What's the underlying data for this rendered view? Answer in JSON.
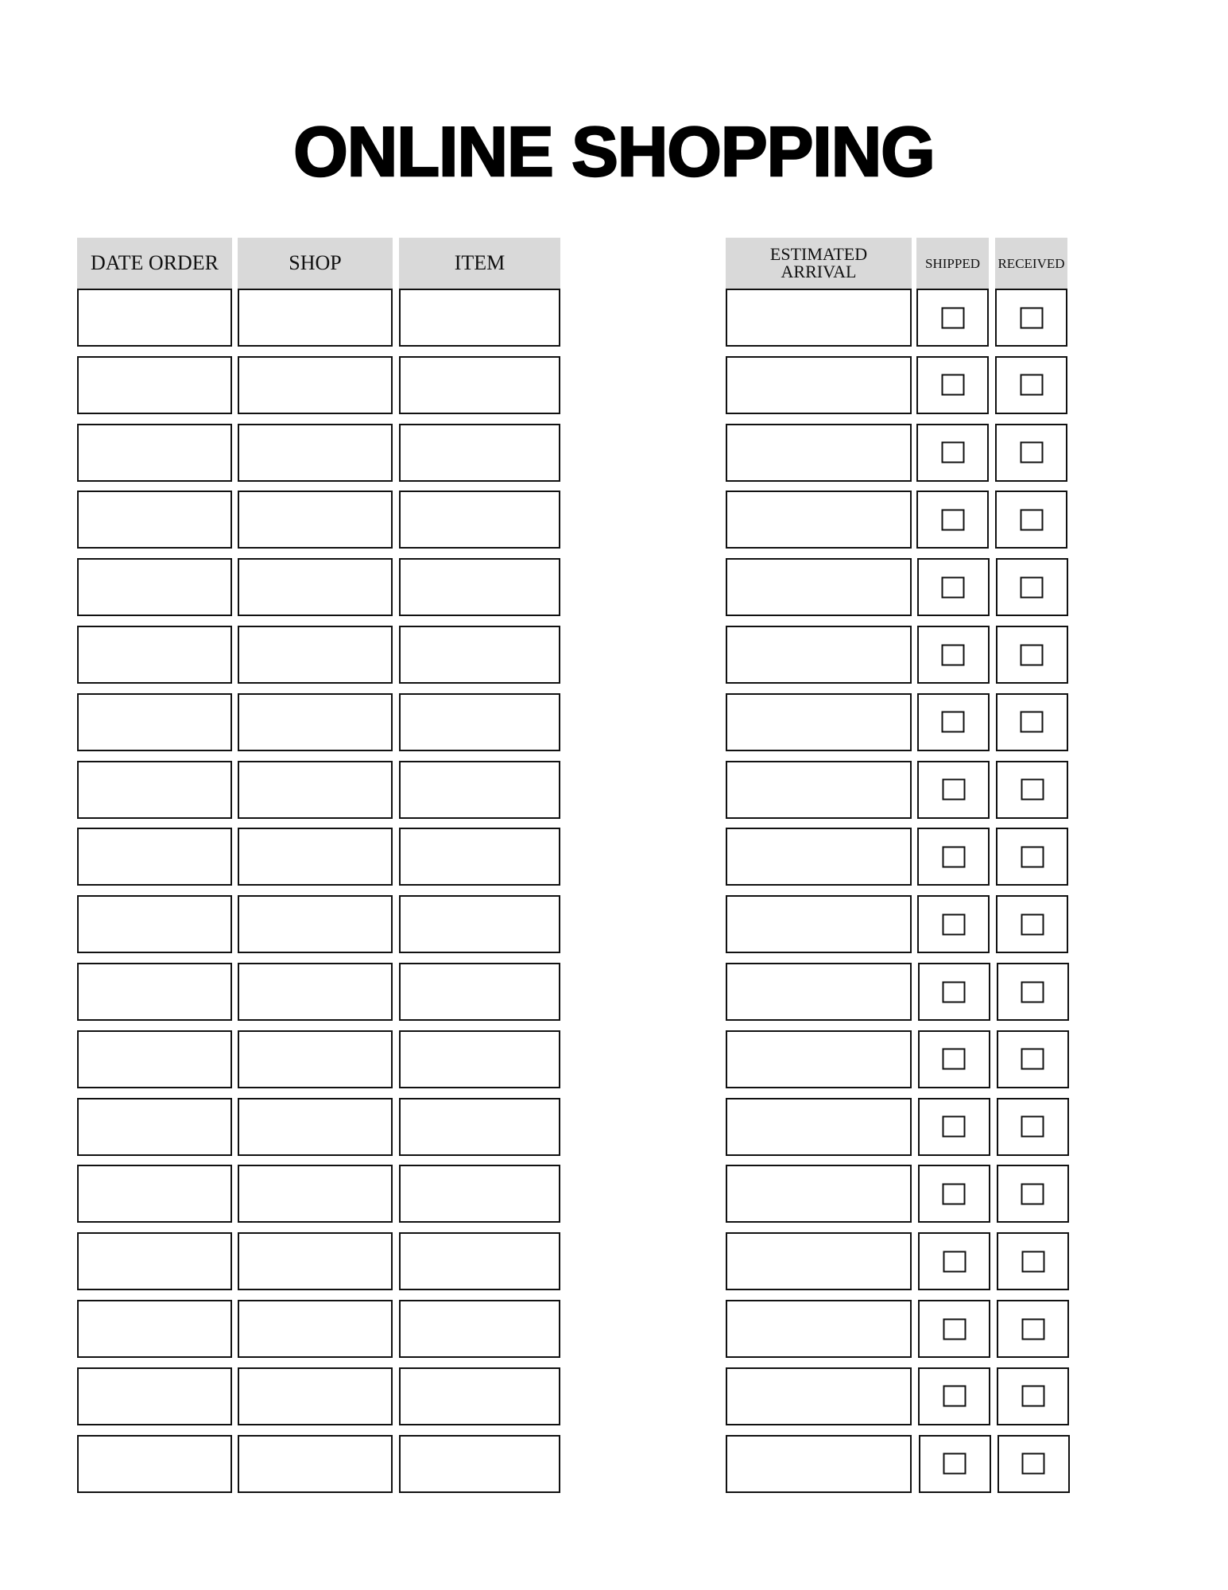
{
  "title": "ONLINE SHOPPING",
  "columns": [
    {
      "label": "DATE ORDER",
      "type": "text"
    },
    {
      "label": "SHOP",
      "type": "text"
    },
    {
      "label": "ITEM",
      "type": "text"
    },
    {
      "label": "ESTIMATED ARRIVAL",
      "type": "text"
    },
    {
      "label": "SHIPPED",
      "type": "checkbox"
    },
    {
      "label": "RECEIVED",
      "type": "checkbox"
    }
  ],
  "rows": [
    {
      "date_order": "",
      "shop": "",
      "item": "",
      "estimated_arrival": "",
      "shipped": false,
      "received": false
    },
    {
      "date_order": "",
      "shop": "",
      "item": "",
      "estimated_arrival": "",
      "shipped": false,
      "received": false
    },
    {
      "date_order": "",
      "shop": "",
      "item": "",
      "estimated_arrival": "",
      "shipped": false,
      "received": false
    },
    {
      "date_order": "",
      "shop": "",
      "item": "",
      "estimated_arrival": "",
      "shipped": false,
      "received": false
    },
    {
      "date_order": "",
      "shop": "",
      "item": "",
      "estimated_arrival": "",
      "shipped": false,
      "received": false
    },
    {
      "date_order": "",
      "shop": "",
      "item": "",
      "estimated_arrival": "",
      "shipped": false,
      "received": false
    },
    {
      "date_order": "",
      "shop": "",
      "item": "",
      "estimated_arrival": "",
      "shipped": false,
      "received": false
    },
    {
      "date_order": "",
      "shop": "",
      "item": "",
      "estimated_arrival": "",
      "shipped": false,
      "received": false
    },
    {
      "date_order": "",
      "shop": "",
      "item": "",
      "estimated_arrival": "",
      "shipped": false,
      "received": false
    },
    {
      "date_order": "",
      "shop": "",
      "item": "",
      "estimated_arrival": "",
      "shipped": false,
      "received": false
    },
    {
      "date_order": "",
      "shop": "",
      "item": "",
      "estimated_arrival": "",
      "shipped": false,
      "received": false
    },
    {
      "date_order": "",
      "shop": "",
      "item": "",
      "estimated_arrival": "",
      "shipped": false,
      "received": false
    },
    {
      "date_order": "",
      "shop": "",
      "item": "",
      "estimated_arrival": "",
      "shipped": false,
      "received": false
    },
    {
      "date_order": "",
      "shop": "",
      "item": "",
      "estimated_arrival": "",
      "shipped": false,
      "received": false
    },
    {
      "date_order": "",
      "shop": "",
      "item": "",
      "estimated_arrival": "",
      "shipped": false,
      "received": false
    },
    {
      "date_order": "",
      "shop": "",
      "item": "",
      "estimated_arrival": "",
      "shipped": false,
      "received": false
    },
    {
      "date_order": "",
      "shop": "",
      "item": "",
      "estimated_arrival": "",
      "shipped": false,
      "received": false
    },
    {
      "date_order": "",
      "shop": "",
      "item": "",
      "estimated_arrival": "",
      "shipped": false,
      "received": false
    }
  ]
}
